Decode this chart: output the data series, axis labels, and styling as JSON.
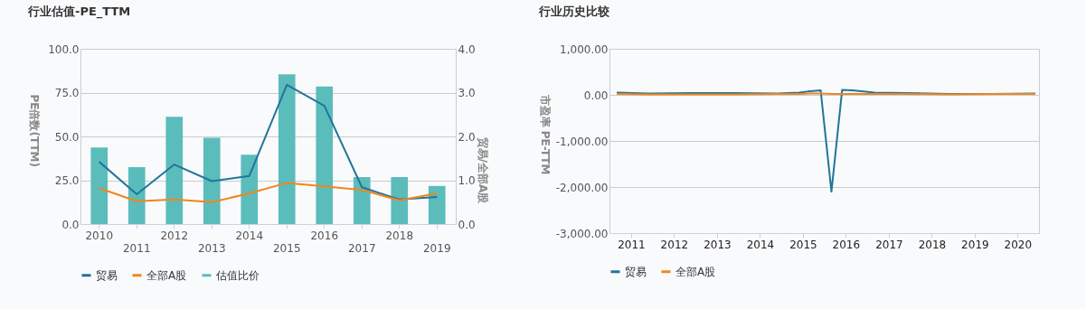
{
  "chart_data": [
    {
      "type": "bar",
      "title": "行业估值-PE_TTM",
      "ylabel": "PE倍数(TTM)",
      "y2label": "贸易/全部A股",
      "categories": [
        "2010",
        "2011",
        "2012",
        "2013",
        "2014",
        "2015",
        "2016",
        "2017",
        "2018",
        "2019"
      ],
      "series": [
        {
          "name": "贸易",
          "type": "line",
          "color": "#21759b",
          "values": [
            35.5,
            17,
            34,
            24.5,
            27.5,
            79.5,
            67.5,
            21,
            14,
            15.5
          ]
        },
        {
          "name": "全部A股",
          "type": "line",
          "color": "#f0861d",
          "values": [
            20.5,
            13,
            14,
            12.5,
            17.5,
            23.5,
            21.5,
            19.5,
            13.5,
            17.5
          ]
        },
        {
          "name": "估值比价",
          "type": "bar",
          "axis": "y2",
          "color": "#5bbcbc",
          "values": [
            1.75,
            1.3,
            2.45,
            1.97,
            1.58,
            3.42,
            3.14,
            1.07,
            1.07,
            0.87
          ]
        }
      ],
      "ylim": [
        0,
        100
      ],
      "yticks": [
        {
          "value": 0,
          "label": "0.0"
        },
        {
          "value": 25,
          "label": "25.0"
        },
        {
          "value": 50,
          "label": "50.0"
        },
        {
          "value": 75,
          "label": "75.0"
        },
        {
          "value": 100,
          "label": "100.0"
        }
      ],
      "y2lim": [
        0,
        4
      ],
      "y2ticks": [
        {
          "value": 0,
          "label": "0.0"
        },
        {
          "value": 1,
          "label": "1.0"
        },
        {
          "value": 2,
          "label": "2.0"
        },
        {
          "value": 3,
          "label": "3.0"
        },
        {
          "value": 4,
          "label": "4.0"
        }
      ],
      "grid": "y",
      "legend": "bottom"
    },
    {
      "type": "line",
      "title": "行业历史比较",
      "ylabel": "市盈率 PE-TTM",
      "x": [
        "2010-09",
        "2011-06",
        "2012-06",
        "2013-06",
        "2014-06",
        "2014-12",
        "2015-03",
        "2015-06",
        "2015-09",
        "2015-12",
        "2016-03",
        "2016-09",
        "2017-06",
        "2018-06",
        "2019-06",
        "2020-06"
      ],
      "series": [
        {
          "name": "贸易",
          "color": "#21759b",
          "values": [
            50,
            30,
            40,
            40,
            30,
            50,
            80,
            100,
            -2100,
            110,
            100,
            50,
            40,
            20,
            20,
            30
          ]
        },
        {
          "name": "全部A股",
          "color": "#f0861d",
          "values": [
            20,
            10,
            10,
            10,
            20,
            20,
            30,
            30,
            20,
            20,
            20,
            20,
            20,
            10,
            20,
            20
          ]
        }
      ],
      "xlim": [
        "2010-07",
        "2020-07"
      ],
      "xticks": [
        "2011",
        "2012",
        "2013",
        "2014",
        "2015",
        "2016",
        "2017",
        "2018",
        "2019",
        "2020"
      ],
      "ylim": [
        -3000,
        1000
      ],
      "yticks": [
        {
          "value": -3000,
          "label": "-3,000.00"
        },
        {
          "value": -2000,
          "label": "-2,000.00"
        },
        {
          "value": -1000,
          "label": "-1,000.00"
        },
        {
          "value": 0,
          "label": "0.00"
        },
        {
          "value": 1000,
          "label": "1,000.00"
        }
      ],
      "grid": "y",
      "legend": "bottom"
    }
  ]
}
